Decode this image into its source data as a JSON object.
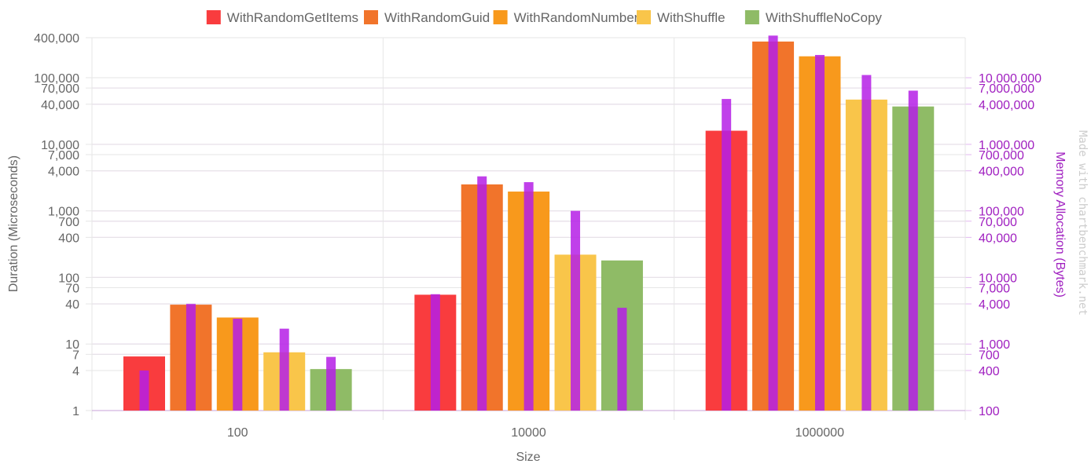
{
  "chart_data": {
    "type": "bar",
    "categories": [
      "100",
      "10000",
      "1000000"
    ],
    "xlabel": "Size",
    "ylabel": "Duration (Microseconds)",
    "y2label": "Memory Allocation (Bytes)",
    "yscale": "log",
    "y2scale": "log",
    "ylim": [
      1,
      400000
    ],
    "y2lim": [
      100,
      40000000
    ],
    "yticks": [
      1,
      4,
      7,
      10,
      40,
      70,
      100,
      400,
      700,
      1000,
      4000,
      7000,
      10000,
      40000,
      70000,
      100000,
      400000
    ],
    "ytick_labels": [
      "1",
      "4",
      "7",
      "10",
      "40",
      "70",
      "100",
      "400",
      "700",
      "1,000",
      "4,000",
      "7,000",
      "10,000",
      "40,000",
      "70,000",
      "100,000",
      "400,000"
    ],
    "y2ticks": [
      100,
      400,
      700,
      1000,
      4000,
      7000,
      10000,
      40000,
      70000,
      100000,
      400000,
      700000,
      1000000,
      4000000,
      7000000,
      10000000
    ],
    "y2tick_labels": [
      "100",
      "400",
      "700",
      "1,000",
      "4,000",
      "7,000",
      "10,000",
      "40,000",
      "70,000",
      "100,000",
      "400,000",
      "700,000",
      "1,000,000",
      "4,000,000",
      "7,000,000",
      "10,000,000"
    ],
    "legend_position": "top",
    "grid": true,
    "series": [
      {
        "name": "WithRandomGetItems",
        "color": "#f93c3e",
        "values": [
          6.5,
          55,
          16000
        ]
      },
      {
        "name": "WithRandomGuid",
        "color": "#f1742b",
        "values": [
          39,
          2500,
          350000
        ]
      },
      {
        "name": "WithRandomNumber",
        "color": "#f8991c",
        "values": [
          25,
          1950,
          210000
        ]
      },
      {
        "name": "WithShuffle",
        "color": "#f9c54a",
        "values": [
          7.5,
          220,
          47000
        ]
      },
      {
        "name": "WithShuffleNoCopy",
        "color": "#8fbb66",
        "values": [
          4.2,
          180,
          37000
        ]
      }
    ],
    "memory_series": {
      "color": "#b51ee6",
      "values": [
        [
          400,
          5600,
          4800000
        ],
        [
          4000,
          330000,
          43000000
        ],
        [
          2400,
          270000,
          22000000
        ],
        [
          1700,
          100000,
          11000000
        ],
        [
          640,
          3500,
          6400000
        ]
      ]
    }
  },
  "watermark": "Made with chartbenchmark.net"
}
